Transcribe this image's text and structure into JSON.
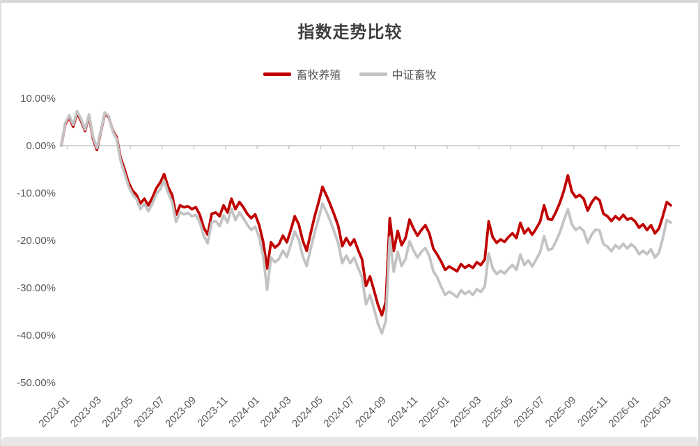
{
  "title": "指数走势比较",
  "legend": {
    "items": [
      {
        "label": "畜牧养殖",
        "color": "#c00000"
      },
      {
        "label": "中证畜牧",
        "color": "#c3c3c3"
      }
    ]
  },
  "colors": {
    "accent_red": "#c00000",
    "series_gray": "#c3c3c3",
    "axis_line": "#c6c6c6",
    "tick_text": "#595959",
    "title_text": "#3f3f3f",
    "frame_gray": "#d8d8d8",
    "bottom_bar": "#e7e7e7"
  },
  "chart_data": {
    "type": "line",
    "title": "指数走势比较",
    "xlabel": "",
    "ylabel": "",
    "ylim": [
      -50,
      10
    ],
    "y_ticks": [
      10,
      0,
      -10,
      -20,
      -30,
      -40,
      -50
    ],
    "y_tick_labels": [
      "10.00%",
      "0.00%",
      "-10.00%",
      "-20.00%",
      "-30.00%",
      "-40.00%",
      "-50.00%"
    ],
    "x_tick_labels": [
      "2023-01",
      "2023-03",
      "2023-05",
      "2023-07",
      "2023-09",
      "2023-11",
      "2024-01",
      "2024-03",
      "2024-05",
      "2024-07",
      "2024-09",
      "2024-11",
      "2025-01",
      "2025-03",
      "2025-05",
      "2025-07",
      "2025-09",
      "2025-11",
      "2026-01",
      "2026-03"
    ],
    "x_range_note": "weekly points, 4 per month, 2023-01 through 2026-03",
    "grid": "only 0% axis line visible, ticks below axis",
    "legend_position": "top-center",
    "unit": "percent",
    "series": [
      {
        "name": "畜牧养殖",
        "color": "#c00000",
        "values": [
          0.0,
          4.5,
          6.0,
          4.0,
          6.9,
          5.2,
          3.1,
          6.3,
          1.5,
          -0.9,
          3.0,
          6.8,
          6.0,
          3.2,
          1.8,
          -2.6,
          -5.0,
          -7.8,
          -9.5,
          -10.4,
          -12.2,
          -11.2,
          -12.6,
          -11.0,
          -9.0,
          -7.8,
          -6.0,
          -8.7,
          -10.4,
          -14.6,
          -12.6,
          -13.0,
          -12.8,
          -13.4,
          -13.0,
          -14.6,
          -17.3,
          -18.8,
          -14.4,
          -14.1,
          -14.9,
          -12.6,
          -14.1,
          -11.2,
          -13.4,
          -11.9,
          -13.0,
          -14.4,
          -15.3,
          -14.5,
          -16.8,
          -20.3,
          -25.9,
          -20.4,
          -21.5,
          -20.8,
          -19.0,
          -20.4,
          -17.8,
          -14.9,
          -16.6,
          -20.0,
          -22.2,
          -18.5,
          -15.0,
          -12.0,
          -8.7,
          -10.5,
          -12.5,
          -14.6,
          -17.0,
          -21.2,
          -19.5,
          -21.0,
          -19.8,
          -22.0,
          -24.0,
          -29.6,
          -27.6,
          -30.5,
          -33.5,
          -35.8,
          -33.0,
          -15.3,
          -22.2,
          -18.0,
          -21.0,
          -19.5,
          -15.6,
          -17.5,
          -19.0,
          -17.8,
          -16.8,
          -18.5,
          -21.7,
          -23.0,
          -24.5,
          -26.2,
          -25.5,
          -26.0,
          -26.5,
          -25.0,
          -25.8,
          -25.2,
          -25.8,
          -24.6,
          -25.2,
          -24.0,
          -16.0,
          -19.3,
          -20.5,
          -19.8,
          -20.3,
          -19.3,
          -18.5,
          -19.5,
          -16.3,
          -18.5,
          -17.5,
          -18.8,
          -17.5,
          -16.0,
          -12.6,
          -15.5,
          -15.6,
          -14.0,
          -12.0,
          -9.5,
          -6.3,
          -9.7,
          -10.9,
          -10.4,
          -11.2,
          -13.7,
          -12.0,
          -10.9,
          -11.5,
          -14.4,
          -14.9,
          -15.9,
          -14.9,
          -15.6,
          -14.6,
          -15.6,
          -15.3,
          -16.0,
          -17.3,
          -16.6,
          -17.8,
          -16.8,
          -18.5,
          -17.5,
          -14.9,
          -11.9,
          -12.6
        ]
      },
      {
        "name": "中证畜牧",
        "color": "#c3c3c3",
        "values": [
          0.0,
          4.8,
          6.4,
          4.4,
          7.3,
          5.6,
          3.4,
          6.6,
          1.9,
          -0.5,
          3.2,
          7.0,
          6.2,
          3.0,
          1.4,
          -3.2,
          -5.9,
          -8.6,
          -10.3,
          -11.3,
          -13.4,
          -12.3,
          -13.8,
          -12.3,
          -10.2,
          -9.2,
          -7.4,
          -10.0,
          -11.9,
          -16.1,
          -14.0,
          -14.5,
          -14.2,
          -14.9,
          -14.6,
          -16.2,
          -19.0,
          -20.6,
          -16.2,
          -15.9,
          -17.0,
          -14.7,
          -16.2,
          -13.3,
          -15.7,
          -14.1,
          -15.3,
          -16.7,
          -17.8,
          -17.1,
          -19.4,
          -23.2,
          -30.4,
          -23.6,
          -24.6,
          -23.9,
          -22.1,
          -23.5,
          -20.9,
          -18.1,
          -19.8,
          -23.3,
          -25.4,
          -21.8,
          -18.4,
          -15.5,
          -12.2,
          -14.0,
          -16.0,
          -18.2,
          -20.6,
          -24.8,
          -23.2,
          -24.8,
          -23.6,
          -25.8,
          -27.8,
          -33.5,
          -31.5,
          -34.4,
          -37.5,
          -39.6,
          -37.0,
          -19.4,
          -26.6,
          -22.4,
          -25.4,
          -23.9,
          -20.2,
          -22.1,
          -23.6,
          -22.4,
          -21.6,
          -23.3,
          -26.5,
          -27.8,
          -29.8,
          -31.5,
          -30.8,
          -31.3,
          -32.0,
          -30.5,
          -31.3,
          -30.7,
          -31.5,
          -30.3,
          -30.9,
          -29.7,
          -22.7,
          -25.9,
          -27.1,
          -26.4,
          -27.0,
          -26.0,
          -25.2,
          -26.2,
          -23.0,
          -25.2,
          -24.2,
          -25.5,
          -24.0,
          -22.5,
          -19.1,
          -22.0,
          -21.8,
          -20.2,
          -18.3,
          -15.8,
          -13.4,
          -16.6,
          -17.8,
          -17.2,
          -18.0,
          -20.5,
          -18.8,
          -17.7,
          -17.9,
          -20.8,
          -21.3,
          -22.3,
          -21.0,
          -21.7,
          -20.7,
          -21.7,
          -20.8,
          -21.5,
          -22.9,
          -22.2,
          -22.9,
          -21.9,
          -23.6,
          -22.6,
          -19.5,
          -15.7,
          -16.2
        ]
      }
    ]
  }
}
